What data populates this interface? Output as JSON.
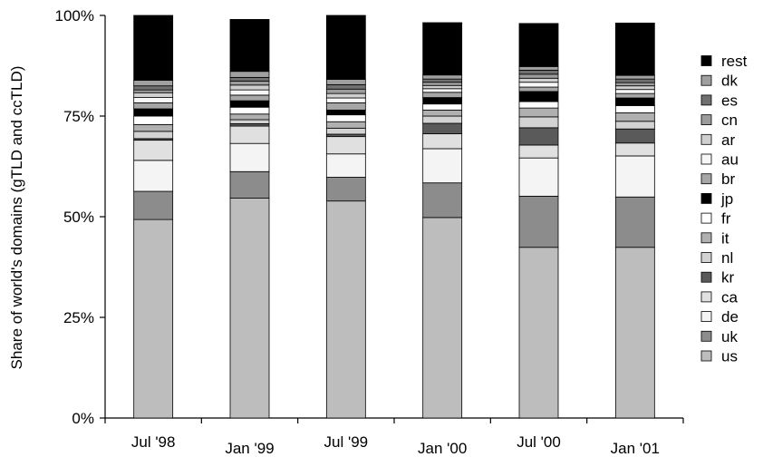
{
  "chart_data": {
    "type": "bar",
    "stacked": true,
    "title": "",
    "xlabel": "",
    "ylabel": "Share of world's domains (gTLD and ccTLD)",
    "ylim": [
      0,
      100
    ],
    "yticks": [
      "0%",
      "25%",
      "50%",
      "75%",
      "100%"
    ],
    "ytick_values": [
      0,
      25,
      50,
      75,
      100
    ],
    "grid": false,
    "legend_position": "right",
    "categories": [
      "Jul '98",
      "Jan '99",
      "Jul '99",
      "Jan '00",
      "Jul '00",
      "Jan '01"
    ],
    "series": [
      {
        "name": "us",
        "color": "#bdbdbd",
        "values": [
          49.3,
          54.6,
          53.9,
          49.8,
          42.4,
          42.4
        ]
      },
      {
        "name": "uk",
        "color": "#8c8c8c",
        "values": [
          7.0,
          6.6,
          5.9,
          8.6,
          12.7,
          12.5
        ]
      },
      {
        "name": "de",
        "color": "#f4f4f4",
        "values": [
          7.7,
          7.0,
          5.8,
          8.5,
          9.5,
          10.2
        ]
      },
      {
        "name": "ca",
        "color": "#e0e0e0",
        "values": [
          5.0,
          4.3,
          4.3,
          3.7,
          3.2,
          3.2
        ]
      },
      {
        "name": "kr",
        "color": "#5a5a5a",
        "values": [
          0.4,
          0.6,
          0.6,
          2.6,
          4.3,
          3.5
        ]
      },
      {
        "name": "nl",
        "color": "#d3d3d3",
        "values": [
          1.8,
          1.0,
          1.5,
          1.8,
          2.7,
          1.9
        ]
      },
      {
        "name": "it",
        "color": "#b0b0b0",
        "values": [
          1.7,
          1.4,
          1.6,
          1.5,
          2.2,
          2.1
        ]
      },
      {
        "name": "fr",
        "color": "#ffffff",
        "values": [
          2.1,
          1.7,
          1.7,
          1.5,
          1.6,
          1.8
        ]
      },
      {
        "name": "jp",
        "color": "#000000",
        "values": [
          1.8,
          1.6,
          1.2,
          1.6,
          2.5,
          1.9
        ]
      },
      {
        "name": "br",
        "color": "#a6a6a6",
        "values": [
          1.5,
          1.4,
          1.8,
          1.3,
          1.1,
          1.1
        ]
      },
      {
        "name": "au",
        "color": "#f7f7f7",
        "values": [
          1.3,
          1.3,
          1.2,
          0.9,
          1.2,
          1.0
        ]
      },
      {
        "name": "ar",
        "color": "#cfcfcf",
        "values": [
          1.2,
          1.2,
          1.1,
          0.8,
          1.0,
          0.9
        ]
      },
      {
        "name": "cn",
        "color": "#9c9c9c",
        "values": [
          0.7,
          1.0,
          1.1,
          0.8,
          1.0,
          0.8
        ]
      },
      {
        "name": "es",
        "color": "#707070",
        "values": [
          1.0,
          0.9,
          1.1,
          0.8,
          1.0,
          0.9
        ]
      },
      {
        "name": "dk",
        "color": "#a0a0a0",
        "values": [
          1.4,
          1.5,
          1.3,
          1.0,
          0.9,
          0.9
        ]
      },
      {
        "name": "rest",
        "color": "#000000",
        "values": [
          16.1,
          12.9,
          15.9,
          13.0,
          10.7,
          13.0
        ]
      }
    ]
  }
}
